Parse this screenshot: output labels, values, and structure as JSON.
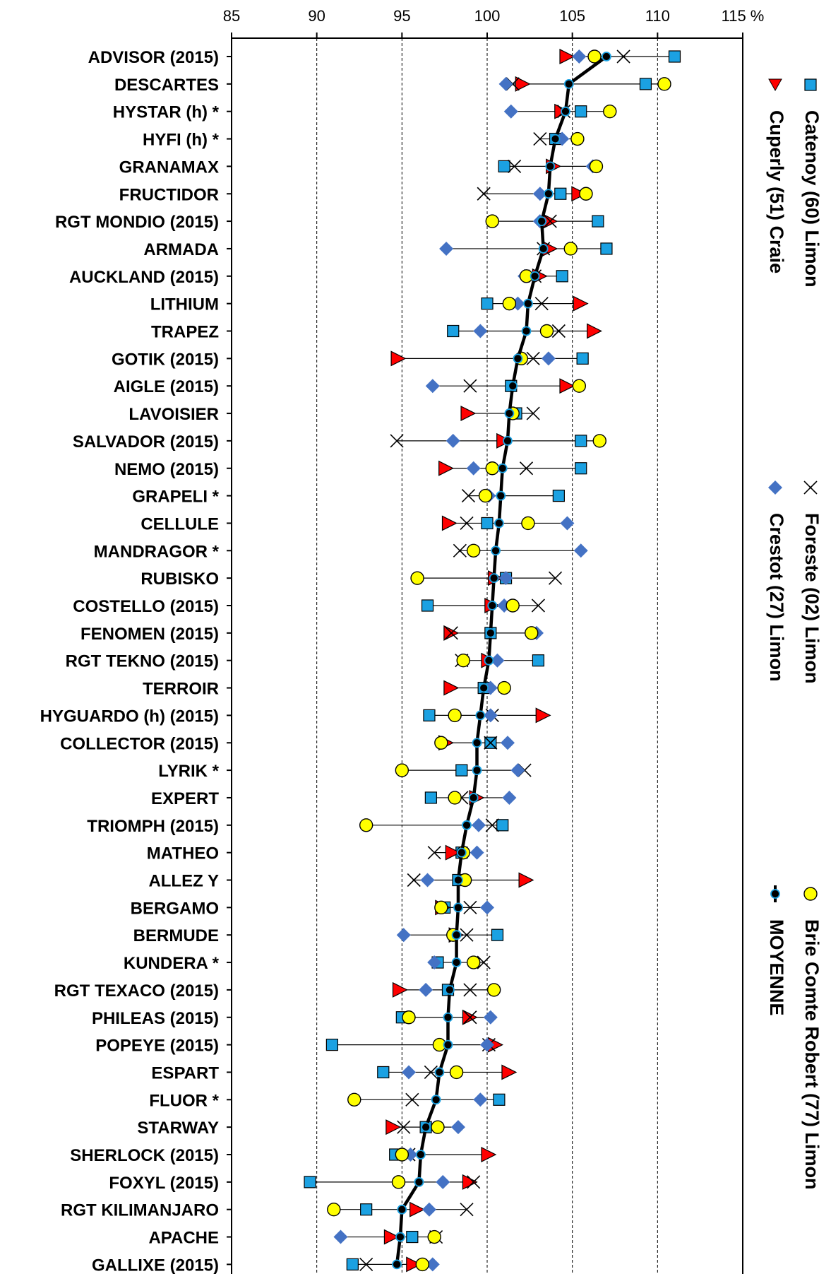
{
  "chart_data": {
    "type": "scatter",
    "x_axis": {
      "min": 85,
      "max": 115,
      "ticks": [
        85,
        90,
        95,
        100,
        105,
        110,
        115
      ],
      "unit": "%",
      "grid": true,
      "position": "top"
    },
    "categories": [
      "ADVISOR (2015)",
      "DESCARTES",
      "HYSTAR (h) *",
      "HYFI (h) *",
      "GRANAMAX",
      "FRUCTIDOR",
      "RGT MONDIO (2015)",
      "ARMADA",
      "AUCKLAND (2015)",
      "LITHIUM",
      "TRAPEZ",
      "GOTIK (2015)",
      "AIGLE (2015)",
      "LAVOISIER",
      "SALVADOR (2015)",
      "NEMO (2015)",
      "GRAPELI *",
      "CELLULE",
      "MANDRAGOR *",
      "RUBISKO",
      "COSTELLO (2015)",
      "FENOMEN (2015)",
      "RGT TEKNO (2015)",
      "TERROIR",
      "HYGUARDO (h) (2015)",
      "COLLECTOR (2015)",
      "LYRIK *",
      "EXPERT",
      "TRIOMPH (2015)",
      "MATHEO",
      "ALLEZ Y",
      "BERGAMO",
      "BERMUDE",
      "KUNDERA *",
      "RGT TEXACO (2015)",
      "PHILEAS (2015)",
      "POPEYE (2015)",
      "ESPART",
      "FLUOR *",
      "STARWAY",
      "SHERLOCK (2015)",
      "FOXYL (2015)",
      "RGT KILIMANJARO",
      "APACHE",
      "GALLIXE (2015)"
    ],
    "legend_position": "right",
    "series": [
      {
        "name": "Catenoy (60) Limon",
        "marker": "square",
        "color": "#1BA1E2",
        "values": [
          111.0,
          109.3,
          105.5,
          104.0,
          101.0,
          104.3,
          106.5,
          107.0,
          104.4,
          100.0,
          98.0,
          105.6,
          101.4,
          101.7,
          105.5,
          105.5,
          104.2,
          100.0,
          null,
          101.1,
          96.5,
          100.2,
          103.0,
          99.8,
          96.6,
          100.2,
          98.5,
          96.7,
          100.9,
          98.5,
          98.3,
          97.5,
          100.6,
          97.1,
          97.7,
          95.0,
          90.9,
          93.9,
          100.7,
          96.4,
          94.6,
          89.6,
          92.9,
          95.6,
          92.1
        ]
      },
      {
        "name": "Cuperly (51) Craie",
        "marker": "triangle",
        "color": "#FF0000",
        "values": [
          104.6,
          102.0,
          104.3,
          null,
          103.8,
          105.3,
          103.6,
          103.6,
          103.0,
          105.4,
          106.2,
          94.7,
          104.6,
          98.8,
          100.9,
          97.5,
          null,
          97.7,
          null,
          100.4,
          100.2,
          97.8,
          100.0,
          97.8,
          103.2,
          97.5,
          null,
          99.3,
          null,
          97.9,
          102.2,
          97.3,
          98.1,
          null,
          94.8,
          98.9,
          100.4,
          101.2,
          null,
          94.4,
          100.0,
          98.9,
          95.8,
          94.3,
          95.6
        ]
      },
      {
        "name": "Foreste (02) Limon",
        "marker": "cross",
        "color": "#000000",
        "values": [
          108.0,
          101.5,
          104.5,
          103.1,
          101.6,
          99.8,
          103.7,
          103.3,
          102.8,
          103.2,
          104.2,
          102.7,
          99.0,
          102.7,
          94.7,
          102.3,
          98.9,
          98.8,
          98.4,
          104.0,
          103.0,
          97.9,
          98.5,
          null,
          100.3,
          100.2,
          102.2,
          98.5,
          100.3,
          96.9,
          95.7,
          99.0,
          98.8,
          99.8,
          99.0,
          99.0,
          100.1,
          96.7,
          95.6,
          95.1,
          95.4,
          99.2,
          98.8,
          97.0,
          92.9
        ]
      },
      {
        "name": "Crestot (27) Limon",
        "marker": "diamond",
        "color": "#4472C4",
        "values": [
          105.4,
          101.1,
          101.4,
          104.4,
          106.2,
          103.1,
          103.1,
          97.6,
          102.2,
          101.8,
          99.6,
          103.6,
          96.8,
          101.5,
          98.0,
          99.2,
          100.1,
          104.7,
          105.5,
          101.1,
          101.0,
          102.9,
          100.6,
          100.2,
          100.2,
          101.2,
          101.8,
          101.3,
          99.5,
          99.4,
          96.5,
          100.0,
          95.1,
          96.9,
          96.4,
          100.2,
          100.0,
          95.4,
          99.6,
          98.3,
          95.5,
          97.4,
          96.6,
          91.4,
          96.8
        ]
      },
      {
        "name": "Brie Comte Robert (77) Limon",
        "marker": "circle",
        "color": "#FFFF00",
        "values": [
          106.3,
          110.4,
          107.2,
          105.3,
          106.4,
          105.8,
          100.3,
          104.9,
          102.3,
          101.3,
          103.5,
          102.0,
          105.4,
          101.5,
          106.6,
          100.3,
          99.9,
          102.4,
          99.2,
          95.9,
          101.5,
          102.6,
          98.6,
          101.0,
          98.1,
          97.3,
          95.0,
          98.1,
          92.9,
          98.6,
          98.7,
          97.3,
          98.0,
          99.2,
          100.4,
          95.4,
          97.2,
          98.2,
          92.2,
          97.1,
          95.0,
          94.8,
          91.0,
          96.9,
          96.2
        ]
      },
      {
        "name": "MOYENNE",
        "marker": "dot-line",
        "color": "#000000",
        "values": [
          107.0,
          104.8,
          104.6,
          104.0,
          103.7,
          103.6,
          103.2,
          103.3,
          102.8,
          102.4,
          102.3,
          101.8,
          101.5,
          101.3,
          101.2,
          100.9,
          100.8,
          100.7,
          100.5,
          100.4,
          100.3,
          100.2,
          100.1,
          99.8,
          99.6,
          99.4,
          99.4,
          99.2,
          98.8,
          98.5,
          98.3,
          98.3,
          98.2,
          98.2,
          97.8,
          97.7,
          97.7,
          97.2,
          97.0,
          96.4,
          96.1,
          96.0,
          95.0,
          94.9,
          94.7
        ]
      }
    ]
  }
}
